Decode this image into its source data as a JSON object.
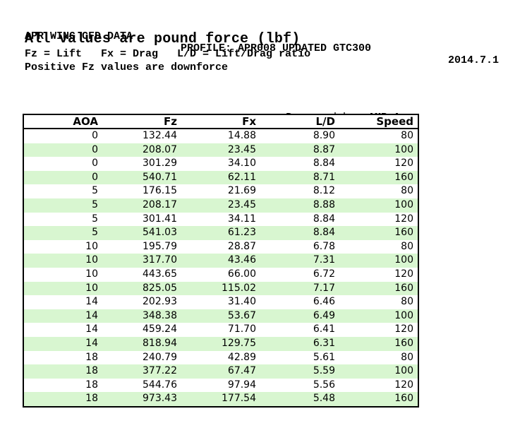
{
  "header": {
    "title": "APR WING CFD DATA",
    "profile": "PROFILE: APR008 UPDATED GTC300",
    "date": "2014.7.1",
    "subtitle": "All values are pound force (lbf)",
    "legend": "Fz = Lift   Fx = Drag   L/D = Lift/Drag ratio",
    "note": "Positive Fz values are downforce"
  },
  "prepared_by": {
    "label": "Prepared by: ",
    "value": "AMB Aero"
  },
  "colors": {
    "row_stripe": "#d8f6d0",
    "border": "#000000",
    "text": "#000000"
  },
  "table": {
    "columns": [
      "AOA",
      "Fz",
      "Fx",
      "L/D",
      "Speed"
    ],
    "rows": [
      [
        "0",
        "132.44",
        "14.88",
        "8.90",
        "80"
      ],
      [
        "0",
        "208.07",
        "23.45",
        "8.87",
        "100"
      ],
      [
        "0",
        "301.29",
        "34.10",
        "8.84",
        "120"
      ],
      [
        "0",
        "540.71",
        "62.11",
        "8.71",
        "160"
      ],
      [
        "5",
        "176.15",
        "21.69",
        "8.12",
        "80"
      ],
      [
        "5",
        "208.17",
        "23.45",
        "8.88",
        "100"
      ],
      [
        "5",
        "301.41",
        "34.11",
        "8.84",
        "120"
      ],
      [
        "5",
        "541.03",
        "61.23",
        "8.84",
        "160"
      ],
      [
        "10",
        "195.79",
        "28.87",
        "6.78",
        "80"
      ],
      [
        "10",
        "317.70",
        "43.46",
        "7.31",
        "100"
      ],
      [
        "10",
        "443.65",
        "66.00",
        "6.72",
        "120"
      ],
      [
        "10",
        "825.05",
        "115.02",
        "7.17",
        "160"
      ],
      [
        "14",
        "202.93",
        "31.40",
        "6.46",
        "80"
      ],
      [
        "14",
        "348.38",
        "53.67",
        "6.49",
        "100"
      ],
      [
        "14",
        "459.24",
        "71.70",
        "6.41",
        "120"
      ],
      [
        "14",
        "818.94",
        "129.75",
        "6.31",
        "160"
      ],
      [
        "18",
        "240.79",
        "42.89",
        "5.61",
        "80"
      ],
      [
        "18",
        "377.22",
        "67.47",
        "5.59",
        "100"
      ],
      [
        "18",
        "544.76",
        "97.94",
        "5.56",
        "120"
      ],
      [
        "18",
        "973.43",
        "177.54",
        "5.48",
        "160"
      ]
    ]
  }
}
